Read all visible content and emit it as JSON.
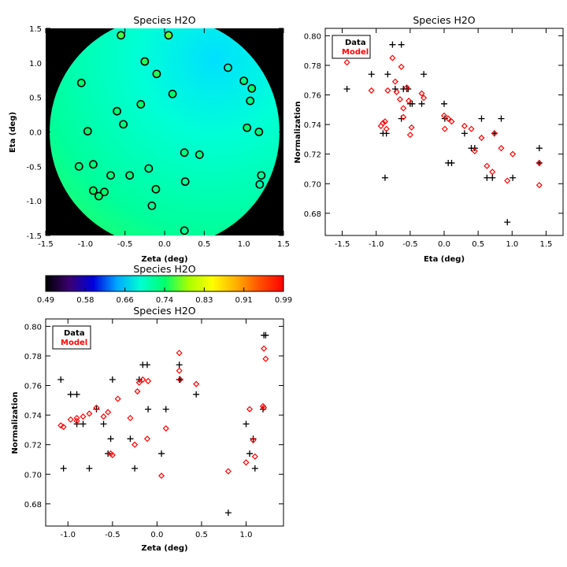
{
  "figure": {
    "colorbar": {
      "title": "Species H2O",
      "ticks": [
        "0.49",
        "0.58",
        "0.66",
        "0.74",
        "0.83",
        "0.91",
        "0.99"
      ],
      "range": [
        0.49,
        0.99
      ],
      "colormap": [
        "#000000",
        "#3a0072",
        "#0000dd",
        "#00a8ff",
        "#00ffd2",
        "#00ff6e",
        "#a8ff00",
        "#ffff00",
        "#ffb000",
        "#ff5000",
        "#ff0000"
      ]
    },
    "colors": {
      "data": "#000000",
      "model": "#ff0000",
      "field": "#00ffd2"
    }
  },
  "chart_data": [
    {
      "type": "scatter",
      "title": "Species H2O",
      "xlabel": "Zeta (deg)",
      "ylabel": "Eta (deg)",
      "xlim": [
        -1.5,
        1.5
      ],
      "ylim": [
        -1.5,
        1.5
      ],
      "xticks": [
        "-1.5",
        "-1.0",
        "-0.5",
        "0.0",
        "0.5",
        "1.0",
        "1.5"
      ],
      "yticks": [
        "-1.5",
        "-1.0",
        "-0.5",
        "0.0",
        "0.5",
        "1.0",
        "1.5"
      ],
      "background": "black",
      "map_description": "circular field colour-coded by modelled normalization (mostly cyan/green, ~0.72-0.76)",
      "points": [
        {
          "x": 0.05,
          "y": 1.4,
          "v": 0.77
        },
        {
          "x": -0.55,
          "y": 1.4,
          "v": 0.76
        },
        {
          "x": -0.25,
          "y": 1.02,
          "v": 0.75
        },
        {
          "x": -0.1,
          "y": 0.84,
          "v": 0.75
        },
        {
          "x": -1.05,
          "y": 0.71,
          "v": 0.74
        },
        {
          "x": 0.8,
          "y": 0.93,
          "v": 0.7
        },
        {
          "x": 1.0,
          "y": 0.74,
          "v": 0.73
        },
        {
          "x": 1.1,
          "y": 0.63,
          "v": 0.74
        },
        {
          "x": 0.1,
          "y": 0.55,
          "v": 0.74
        },
        {
          "x": 1.08,
          "y": 0.45,
          "v": 0.73
        },
        {
          "x": -0.3,
          "y": 0.4,
          "v": 0.74
        },
        {
          "x": -0.6,
          "y": 0.3,
          "v": 0.74
        },
        {
          "x": -0.52,
          "y": 0.11,
          "v": 0.73
        },
        {
          "x": -0.97,
          "y": 0.01,
          "v": 0.74
        },
        {
          "x": 1.04,
          "y": 0.06,
          "v": 0.74
        },
        {
          "x": 1.19,
          "y": 0.0,
          "v": 0.73
        },
        {
          "x": 0.25,
          "y": -0.3,
          "v": 0.73
        },
        {
          "x": 0.44,
          "y": -0.33,
          "v": 0.73
        },
        {
          "x": -1.08,
          "y": -0.5,
          "v": 0.73
        },
        {
          "x": -0.9,
          "y": -0.47,
          "v": 0.73
        },
        {
          "x": -0.2,
          "y": -0.53,
          "v": 0.72
        },
        {
          "x": -0.68,
          "y": -0.63,
          "v": 0.73
        },
        {
          "x": -0.44,
          "y": -0.63,
          "v": 0.73
        },
        {
          "x": 1.22,
          "y": -0.63,
          "v": 0.72
        },
        {
          "x": 0.26,
          "y": -0.72,
          "v": 0.72
        },
        {
          "x": 1.2,
          "y": -0.76,
          "v": 0.71
        },
        {
          "x": -0.9,
          "y": -0.85,
          "v": 0.74
        },
        {
          "x": -0.11,
          "y": -0.83,
          "v": 0.73
        },
        {
          "x": -0.76,
          "y": -0.87,
          "v": 0.74
        },
        {
          "x": -0.83,
          "y": -0.93,
          "v": 0.74
        },
        {
          "x": -0.16,
          "y": -1.07,
          "v": 0.72
        },
        {
          "x": 0.25,
          "y": -1.43,
          "v": 0.72
        }
      ]
    },
    {
      "type": "scatter",
      "title": "Species H2O",
      "xlabel": "Eta (deg)",
      "ylabel": "Normalization",
      "xlim": [
        -1.75,
        1.75
      ],
      "ylim": [
        0.665,
        0.805
      ],
      "xticks": [
        "-1.5",
        "-1.0",
        "-0.5",
        "0.0",
        "0.5",
        "1.0",
        "1.5"
      ],
      "yticks": [
        "0.68",
        "0.70",
        "0.72",
        "0.74",
        "0.76",
        "0.78",
        "0.80"
      ],
      "legend": {
        "position": "top-left",
        "entries": [
          "Data",
          "Model"
        ]
      },
      "series": [
        {
          "name": "Data",
          "marker": "plus",
          "points": [
            {
              "x": -1.43,
              "y": 0.764
            },
            {
              "x": -1.07,
              "y": 0.774
            },
            {
              "x": -0.9,
              "y": 0.734
            },
            {
              "x": -0.87,
              "y": 0.704
            },
            {
              "x": -0.85,
              "y": 0.734
            },
            {
              "x": -0.83,
              "y": 0.774
            },
            {
              "x": -0.76,
              "y": 0.794
            },
            {
              "x": -0.72,
              "y": 0.764
            },
            {
              "x": -0.63,
              "y": 0.794
            },
            {
              "x": -0.63,
              "y": 0.744
            },
            {
              "x": -0.6,
              "y": 0.764
            },
            {
              "x": -0.55,
              "y": 0.764
            },
            {
              "x": -0.53,
              "y": 0.764
            },
            {
              "x": -0.5,
              "y": 0.754
            },
            {
              "x": -0.47,
              "y": 0.754
            },
            {
              "x": -0.33,
              "y": 0.754
            },
            {
              "x": -0.3,
              "y": 0.774
            },
            {
              "x": 0.0,
              "y": 0.754
            },
            {
              "x": 0.01,
              "y": 0.744
            },
            {
              "x": 0.06,
              "y": 0.714
            },
            {
              "x": 0.11,
              "y": 0.714
            },
            {
              "x": 0.3,
              "y": 0.734
            },
            {
              "x": 0.4,
              "y": 0.724
            },
            {
              "x": 0.45,
              "y": 0.724
            },
            {
              "x": 0.55,
              "y": 0.744
            },
            {
              "x": 0.63,
              "y": 0.704
            },
            {
              "x": 0.71,
              "y": 0.704
            },
            {
              "x": 0.74,
              "y": 0.734
            },
            {
              "x": 0.84,
              "y": 0.744
            },
            {
              "x": 0.93,
              "y": 0.674
            },
            {
              "x": 1.01,
              "y": 0.704
            },
            {
              "x": 1.4,
              "y": 0.724
            },
            {
              "x": 1.4,
              "y": 0.714
            }
          ]
        },
        {
          "name": "Model",
          "marker": "diamond",
          "points": [
            {
              "x": -1.43,
              "y": 0.782
            },
            {
              "x": -1.07,
              "y": 0.763
            },
            {
              "x": -0.93,
              "y": 0.739
            },
            {
              "x": -0.9,
              "y": 0.741
            },
            {
              "x": -0.87,
              "y": 0.742
            },
            {
              "x": -0.85,
              "y": 0.737
            },
            {
              "x": -0.83,
              "y": 0.763
            },
            {
              "x": -0.76,
              "y": 0.785
            },
            {
              "x": -0.72,
              "y": 0.769
            },
            {
              "x": -0.7,
              "y": 0.762
            },
            {
              "x": -0.65,
              "y": 0.757
            },
            {
              "x": -0.63,
              "y": 0.779
            },
            {
              "x": -0.6,
              "y": 0.751
            },
            {
              "x": -0.6,
              "y": 0.745
            },
            {
              "x": -0.55,
              "y": 0.765
            },
            {
              "x": -0.52,
              "y": 0.756
            },
            {
              "x": -0.5,
              "y": 0.733
            },
            {
              "x": -0.48,
              "y": 0.738
            },
            {
              "x": -0.33,
              "y": 0.761
            },
            {
              "x": -0.3,
              "y": 0.758
            },
            {
              "x": 0.0,
              "y": 0.746
            },
            {
              "x": 0.01,
              "y": 0.737
            },
            {
              "x": 0.06,
              "y": 0.744
            },
            {
              "x": 0.11,
              "y": 0.742
            },
            {
              "x": 0.3,
              "y": 0.739
            },
            {
              "x": 0.4,
              "y": 0.737
            },
            {
              "x": 0.45,
              "y": 0.722
            },
            {
              "x": 0.55,
              "y": 0.731
            },
            {
              "x": 0.63,
              "y": 0.712
            },
            {
              "x": 0.71,
              "y": 0.708
            },
            {
              "x": 0.74,
              "y": 0.734
            },
            {
              "x": 0.84,
              "y": 0.724
            },
            {
              "x": 0.93,
              "y": 0.702
            },
            {
              "x": 1.01,
              "y": 0.72
            },
            {
              "x": 1.4,
              "y": 0.714
            },
            {
              "x": 1.4,
              "y": 0.699
            }
          ]
        }
      ]
    },
    {
      "type": "scatter",
      "title": "Species H2O",
      "xlabel": "Zeta (deg)",
      "ylabel": "Normalization",
      "xlim": [
        -1.25,
        1.42
      ],
      "ylim": [
        0.665,
        0.805
      ],
      "xticks": [
        "-1.0",
        "-0.5",
        "0.0",
        "0.5",
        "1.0"
      ],
      "yticks": [
        "0.68",
        "0.70",
        "0.72",
        "0.74",
        "0.76",
        "0.78",
        "0.80"
      ],
      "legend": {
        "position": "top-left",
        "entries": [
          "Data",
          "Model"
        ]
      },
      "series": [
        {
          "name": "Data",
          "marker": "plus",
          "points": [
            {
              "x": -1.08,
              "y": 0.764
            },
            {
              "x": -1.05,
              "y": 0.704
            },
            {
              "x": -0.97,
              "y": 0.754
            },
            {
              "x": -0.9,
              "y": 0.754
            },
            {
              "x": -0.9,
              "y": 0.734
            },
            {
              "x": -0.83,
              "y": 0.734
            },
            {
              "x": -0.76,
              "y": 0.704
            },
            {
              "x": -0.68,
              "y": 0.744
            },
            {
              "x": -0.6,
              "y": 0.734
            },
            {
              "x": -0.55,
              "y": 0.714
            },
            {
              "x": -0.52,
              "y": 0.724
            },
            {
              "x": -0.5,
              "y": 0.764
            },
            {
              "x": -0.3,
              "y": 0.724
            },
            {
              "x": -0.25,
              "y": 0.704
            },
            {
              "x": -0.2,
              "y": 0.764
            },
            {
              "x": -0.16,
              "y": 0.774
            },
            {
              "x": -0.11,
              "y": 0.774
            },
            {
              "x": -0.1,
              "y": 0.744
            },
            {
              "x": 0.05,
              "y": 0.714
            },
            {
              "x": 0.1,
              "y": 0.744
            },
            {
              "x": 0.25,
              "y": 0.774
            },
            {
              "x": 0.25,
              "y": 0.764
            },
            {
              "x": 0.26,
              "y": 0.764
            },
            {
              "x": 0.44,
              "y": 0.754
            },
            {
              "x": 0.8,
              "y": 0.674
            },
            {
              "x": 1.0,
              "y": 0.734
            },
            {
              "x": 1.04,
              "y": 0.714
            },
            {
              "x": 1.08,
              "y": 0.724
            },
            {
              "x": 1.1,
              "y": 0.704
            },
            {
              "x": 1.19,
              "y": 0.744
            },
            {
              "x": 1.2,
              "y": 0.794
            },
            {
              "x": 1.22,
              "y": 0.794
            }
          ]
        },
        {
          "name": "Model",
          "marker": "diamond",
          "points": [
            {
              "x": -1.08,
              "y": 0.733
            },
            {
              "x": -1.05,
              "y": 0.732
            },
            {
              "x": -0.97,
              "y": 0.737
            },
            {
              "x": -0.9,
              "y": 0.738
            },
            {
              "x": -0.9,
              "y": 0.736
            },
            {
              "x": -0.83,
              "y": 0.739
            },
            {
              "x": -0.76,
              "y": 0.741
            },
            {
              "x": -0.68,
              "y": 0.745
            },
            {
              "x": -0.6,
              "y": 0.739
            },
            {
              "x": -0.55,
              "y": 0.742
            },
            {
              "x": -0.52,
              "y": 0.714
            },
            {
              "x": -0.5,
              "y": 0.713
            },
            {
              "x": -0.44,
              "y": 0.751
            },
            {
              "x": -0.3,
              "y": 0.738
            },
            {
              "x": -0.25,
              "y": 0.72
            },
            {
              "x": -0.22,
              "y": 0.756
            },
            {
              "x": -0.2,
              "y": 0.762
            },
            {
              "x": -0.16,
              "y": 0.764
            },
            {
              "x": -0.11,
              "y": 0.724
            },
            {
              "x": -0.1,
              "y": 0.763
            },
            {
              "x": 0.05,
              "y": 0.699
            },
            {
              "x": 0.1,
              "y": 0.731
            },
            {
              "x": 0.25,
              "y": 0.782
            },
            {
              "x": 0.25,
              "y": 0.77
            },
            {
              "x": 0.26,
              "y": 0.764
            },
            {
              "x": 0.44,
              "y": 0.761
            },
            {
              "x": 0.8,
              "y": 0.702
            },
            {
              "x": 1.0,
              "y": 0.708
            },
            {
              "x": 1.04,
              "y": 0.744
            },
            {
              "x": 1.08,
              "y": 0.723
            },
            {
              "x": 1.1,
              "y": 0.712
            },
            {
              "x": 1.19,
              "y": 0.746
            },
            {
              "x": 1.2,
              "y": 0.745
            },
            {
              "x": 1.2,
              "y": 0.785
            },
            {
              "x": 1.22,
              "y": 0.778
            }
          ]
        }
      ]
    }
  ]
}
